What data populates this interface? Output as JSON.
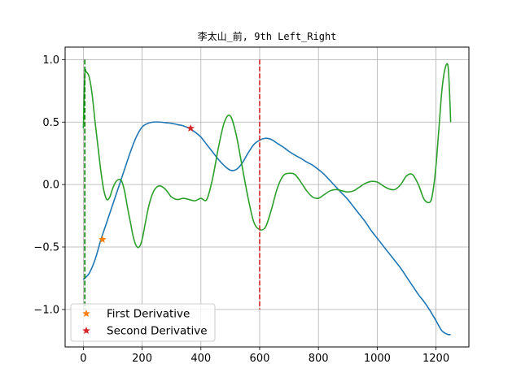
{
  "chart_data": {
    "type": "line",
    "title": "李太山_前, 9th Left_Right",
    "xlabel": "",
    "ylabel": "",
    "xlim": [
      -62,
      1312
    ],
    "ylim": [
      -1.3,
      1.1
    ],
    "xticks": [
      0,
      200,
      400,
      600,
      800,
      1000,
      1200
    ],
    "xtick_labels": [
      "0",
      "200",
      "400",
      "600",
      "800",
      "1000",
      "1200"
    ],
    "yticks": [
      1.0,
      0.5,
      0.0,
      -0.5,
      -1.0
    ],
    "ytick_labels": [
      "1.0",
      "0.5",
      "0.0",
      "−0.5",
      "−1.0"
    ],
    "grid": true,
    "legend_position": "lower-left",
    "series": [
      {
        "color": "#1f77b4",
        "x": [
          0,
          20,
          40,
          60,
          80,
          100,
          120,
          140,
          160,
          180,
          200,
          220,
          240,
          260,
          280,
          300,
          320,
          340,
          360,
          380,
          400,
          420,
          440,
          460,
          480,
          500,
          520,
          540,
          560,
          580,
          600,
          620,
          640,
          660,
          680,
          700,
          720,
          740,
          760,
          780,
          800,
          820,
          840,
          860,
          880,
          900,
          920,
          940,
          960,
          980,
          1000,
          1020,
          1040,
          1060,
          1080,
          1100,
          1120,
          1140,
          1160,
          1180,
          1200,
          1220,
          1240,
          1250
        ],
        "y": [
          -0.76,
          -0.71,
          -0.6,
          -0.44,
          -0.3,
          -0.16,
          -0.02,
          0.12,
          0.26,
          0.38,
          0.46,
          0.49,
          0.5,
          0.5,
          0.495,
          0.49,
          0.48,
          0.47,
          0.45,
          0.42,
          0.38,
          0.32,
          0.26,
          0.2,
          0.15,
          0.115,
          0.12,
          0.17,
          0.25,
          0.32,
          0.355,
          0.37,
          0.36,
          0.33,
          0.3,
          0.265,
          0.235,
          0.21,
          0.18,
          0.155,
          0.12,
          0.08,
          0.03,
          -0.02,
          -0.07,
          -0.12,
          -0.18,
          -0.24,
          -0.3,
          -0.37,
          -0.43,
          -0.49,
          -0.55,
          -0.61,
          -0.67,
          -0.74,
          -0.81,
          -0.88,
          -0.94,
          -1.01,
          -1.09,
          -1.17,
          -1.2,
          -1.2
        ]
      },
      {
        "color": "#2ca02c",
        "x": [
          0,
          5,
          10,
          20,
          30,
          40,
          50,
          60,
          70,
          80,
          90,
          100,
          110,
          120,
          130,
          140,
          150,
          160,
          170,
          180,
          190,
          200,
          210,
          220,
          230,
          240,
          250,
          260,
          270,
          280,
          290,
          300,
          320,
          340,
          360,
          380,
          400,
          420,
          440,
          460,
          480,
          500,
          520,
          540,
          560,
          580,
          600,
          620,
          640,
          660,
          680,
          700,
          720,
          740,
          760,
          780,
          800,
          820,
          840,
          860,
          880,
          900,
          920,
          940,
          960,
          980,
          1000,
          1020,
          1040,
          1060,
          1080,
          1100,
          1120,
          1140,
          1160,
          1180,
          1190,
          1200,
          1210,
          1220,
          1230,
          1240,
          1245,
          1250
        ],
        "y": [
          0.45,
          0.88,
          0.9,
          0.86,
          0.72,
          0.5,
          0.3,
          0.1,
          -0.05,
          -0.12,
          -0.1,
          -0.03,
          0.02,
          0.04,
          0.03,
          -0.05,
          -0.18,
          -0.3,
          -0.42,
          -0.49,
          -0.5,
          -0.44,
          -0.32,
          -0.2,
          -0.11,
          -0.05,
          -0.02,
          -0.01,
          -0.02,
          -0.04,
          -0.07,
          -0.1,
          -0.12,
          -0.11,
          -0.12,
          -0.13,
          -0.11,
          -0.12,
          0.05,
          0.3,
          0.5,
          0.55,
          0.4,
          0.15,
          -0.1,
          -0.3,
          -0.36,
          -0.34,
          -0.2,
          -0.03,
          0.07,
          0.09,
          0.08,
          0.02,
          -0.05,
          -0.1,
          -0.11,
          -0.08,
          -0.05,
          -0.04,
          -0.05,
          -0.06,
          -0.05,
          -0.02,
          0.01,
          0.025,
          0.02,
          -0.01,
          -0.035,
          -0.04,
          0.0,
          0.07,
          0.08,
          0.0,
          -0.12,
          -0.14,
          -0.05,
          0.15,
          0.45,
          0.75,
          0.92,
          0.96,
          0.8,
          0.5
        ]
      }
    ],
    "vlines": [
      {
        "x": 5,
        "ymin": -1.0,
        "ymax": 1.0,
        "color": "#008000",
        "style": "dashed"
      },
      {
        "x": 600,
        "ymin": -1.0,
        "ymax": 1.0,
        "color": "#d62728",
        "style": "dashed"
      }
    ],
    "markers": [
      {
        "name": "First Derivative",
        "x": 65,
        "y": -0.44,
        "color": "#ff7f0e"
      },
      {
        "name": "Second Derivative",
        "x": 365,
        "y": 0.45,
        "color": "#d62728"
      }
    ],
    "legend": [
      {
        "label": "First Derivative",
        "color": "#ff7f0e"
      },
      {
        "label": "Second Derivative",
        "color": "#d62728"
      }
    ]
  }
}
